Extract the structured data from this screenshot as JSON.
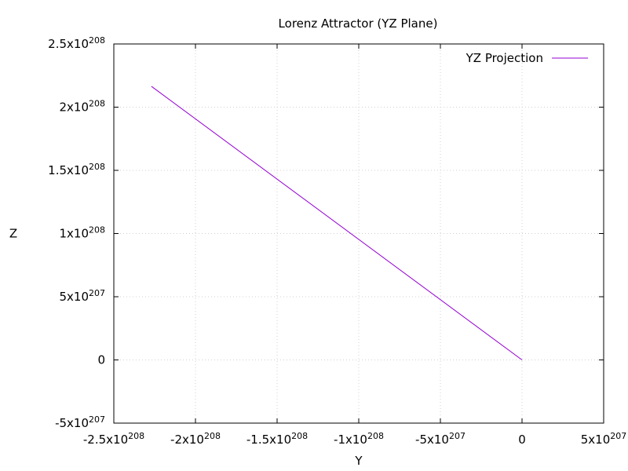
{
  "chart_data": {
    "type": "line",
    "title": "Lorenz Attractor (YZ Plane)",
    "xlabel": "Y",
    "ylabel": "Z",
    "xlim": [
      -2.5e+208,
      5e+207
    ],
    "ylim": [
      -5e+207,
      2.5e+208
    ],
    "x_ticks": [
      {
        "value": -2.5e+208,
        "mant": "-2.5x10",
        "exp": "208"
      },
      {
        "value": -2e+208,
        "mant": "-2x10",
        "exp": "208"
      },
      {
        "value": -1.5e+208,
        "mant": "-1.5x10",
        "exp": "208"
      },
      {
        "value": -1e+208,
        "mant": "-1x10",
        "exp": "208"
      },
      {
        "value": -5e+207,
        "mant": "-5x10",
        "exp": "207"
      },
      {
        "value": 0,
        "mant": "0",
        "exp": ""
      },
      {
        "value": 5e+207,
        "mant": "5x10",
        "exp": "207"
      }
    ],
    "y_ticks": [
      {
        "value": -5e+207,
        "mant": "-5x10",
        "exp": "207"
      },
      {
        "value": 0,
        "mant": "0",
        "exp": ""
      },
      {
        "value": 5e+207,
        "mant": "5x10",
        "exp": "207"
      },
      {
        "value": 1e+208,
        "mant": "1x10",
        "exp": "208"
      },
      {
        "value": 1.5e+208,
        "mant": "1.5x10",
        "exp": "208"
      },
      {
        "value": 2e+208,
        "mant": "2x10",
        "exp": "208"
      },
      {
        "value": 2.5e+208,
        "mant": "2.5x10",
        "exp": "208"
      }
    ],
    "grid": true,
    "legend_position": "top-right",
    "series": [
      {
        "name": "YZ Projection",
        "color": "#9400d3",
        "points": [
          {
            "x": -2.27e+208,
            "y": 2.165e+208
          },
          {
            "x": 0,
            "y": 0
          }
        ]
      }
    ]
  }
}
